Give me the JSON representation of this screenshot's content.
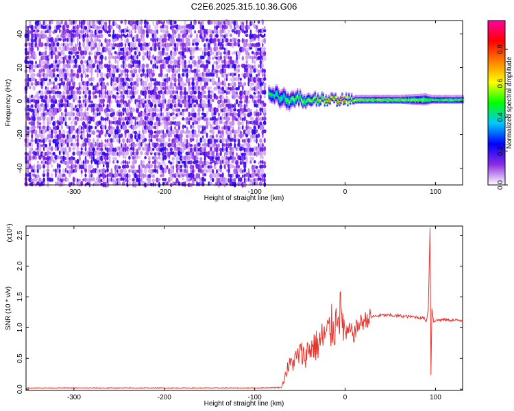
{
  "title": "C2E6.2025.315.10.36.G06",
  "chart_data": [
    {
      "type": "heatmap",
      "xlabel": "Height of straight line (km)",
      "ylabel": "Frequency (Hz)",
      "xlim": [
        -353,
        130
      ],
      "ylim": [
        -50,
        48
      ],
      "xticks": [
        -300,
        -200,
        -100,
        0,
        100
      ],
      "yticks": [
        -40,
        -20,
        0,
        20,
        40
      ],
      "colorbar": {
        "label": "Normalized spectral amplitude",
        "range": [
          0.0,
          0.97
        ],
        "ticks": [
          0.0,
          0.2,
          0.4,
          0.6,
          0.8
        ],
        "colors": [
          "#ffffff",
          "#8a2be2",
          "#0000ff",
          "#00c8ff",
          "#00ff00",
          "#ffff00",
          "#ff8000",
          "#ff0000",
          "#ff00a0"
        ]
      },
      "noise_region": {
        "x_from": -353,
        "x_to": -87,
        "description_amplitude": 0.15
      },
      "signal_band": [
        {
          "x": -85,
          "center": 5,
          "width": 8,
          "amp": 0.45
        },
        {
          "x": -75,
          "center": 3,
          "width": 10,
          "amp": 0.4
        },
        {
          "x": -65,
          "center": 0,
          "width": 10,
          "amp": 0.45
        },
        {
          "x": -55,
          "center": 2,
          "width": 8,
          "amp": 0.5
        },
        {
          "x": -45,
          "center": 0,
          "width": 7,
          "amp": 0.5
        },
        {
          "x": -35,
          "center": 1,
          "width": 6,
          "amp": 0.55
        },
        {
          "x": -25,
          "center": 1,
          "width": 5,
          "amp": 0.6
        },
        {
          "x": -15,
          "center": 1,
          "width": 4,
          "amp": 0.75
        },
        {
          "x": -5,
          "center": 1,
          "width": 4,
          "amp": 0.8
        },
        {
          "x": 5,
          "center": 1,
          "width": 4,
          "amp": 0.6
        },
        {
          "x": 30,
          "center": 1,
          "width": 4,
          "amp": 0.55
        },
        {
          "x": 60,
          "center": 1,
          "width": 4,
          "amp": 0.55
        },
        {
          "x": 88,
          "center": 1,
          "width": 6,
          "amp": 0.5
        },
        {
          "x": 95,
          "center": 1,
          "width": 4,
          "amp": 0.5
        },
        {
          "x": 130,
          "center": 1,
          "width": 4,
          "amp": 0.5
        }
      ]
    },
    {
      "type": "line",
      "xlabel": "Height of straight line (km)",
      "ylabel": "SNR (10 * v/v)",
      "yscale_label": "(x10⁴)",
      "xlim": [
        -353,
        130
      ],
      "ylim": [
        -0.02,
        2.65
      ],
      "xticks": [
        -300,
        -200,
        -100,
        0,
        100
      ],
      "yticks": [
        0.0,
        0.5,
        1.0,
        1.5,
        2.0,
        2.5
      ],
      "color": "#e8322b",
      "series": [
        {
          "x": [
            -353,
            -300,
            -250,
            -200,
            -150,
            -100,
            -70,
            -65,
            -60,
            -55,
            -50,
            -45,
            -40,
            -35,
            -30,
            -25,
            -20,
            -15,
            -10,
            -8,
            -5,
            0,
            5,
            10,
            15,
            20,
            25,
            30,
            40,
            50,
            60,
            70,
            80,
            88,
            90,
            92,
            94,
            95,
            96,
            98,
            100,
            110,
            120,
            130
          ],
          "y": [
            0.02,
            0.02,
            0.02,
            0.02,
            0.02,
            0.02,
            0.03,
            0.25,
            0.35,
            0.4,
            0.5,
            0.45,
            0.55,
            0.6,
            0.6,
            0.7,
            0.75,
            0.85,
            0.9,
            1.3,
            1.0,
            0.85,
            0.95,
            0.9,
            1.05,
            1.1,
            1.15,
            1.18,
            1.2,
            1.2,
            1.19,
            1.18,
            1.17,
            1.15,
            1.1,
            1.3,
            2.62,
            0.22,
            1.3,
            1.1,
            1.12,
            1.13,
            1.12,
            1.12
          ]
        }
      ]
    }
  ]
}
